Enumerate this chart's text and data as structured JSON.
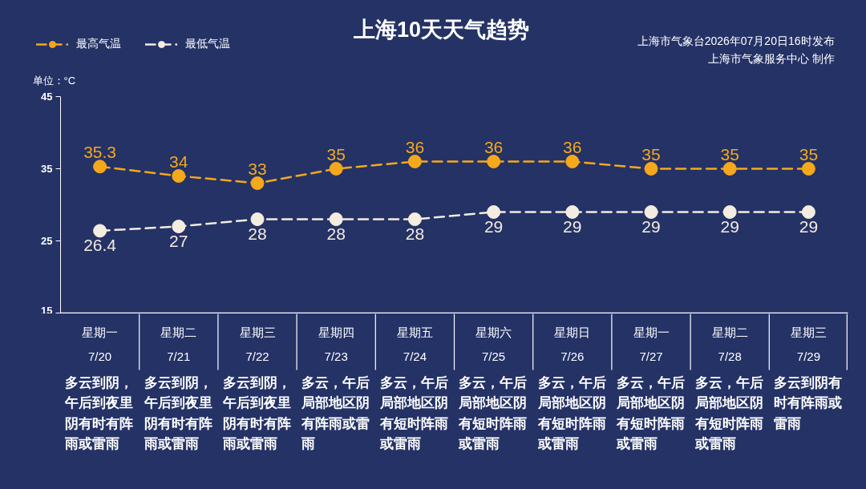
{
  "chart_data": {
    "type": "line",
    "title": "上海10天天气趋势",
    "ylabel": "单位：°C",
    "categories": [
      "星期一\n7/20",
      "星期二\n7/21",
      "星期三\n7/22",
      "星期四\n7/23",
      "星期五\n7/24",
      "星期六\n7/25",
      "星期日\n7/26",
      "星期一\n7/27",
      "星期二\n7/28",
      "星期三\n7/29"
    ],
    "series": [
      {
        "name": "最高气温",
        "color": "#f5a81c",
        "values": [
          35.3,
          34,
          33,
          35,
          36,
          36,
          36,
          35,
          35,
          35
        ]
      },
      {
        "name": "最低气温",
        "color": "#f3ece0",
        "values": [
          26.4,
          27,
          28,
          28,
          28,
          29,
          29,
          29,
          29,
          29
        ]
      }
    ],
    "ylim": [
      15,
      45
    ],
    "yticks": [
      15,
      25,
      35,
      45
    ],
    "grid": false,
    "legend": "top left",
    "marker": "circle",
    "line_style": "dashed",
    "data_labels": true,
    "annotations": [
      "上海市气象台2026年07月20日16时发布",
      "上海市气象服务中心 制作",
      "多云到阴，午后到夜里阴有时有阵雨或雷雨",
      "多云到阴，午后到夜里阴有时有阵雨或雷雨",
      "多云到阴，午后到夜里阴有时有阵雨或雷雨",
      "多云，午后局部地区阴有阵雨或雷雨",
      "多云，午后局部地区阴有短时阵雨或雷雨",
      "多云，午后局部地区阴有短时阵雨或雷雨",
      "多云，午后局部地区阴有短时阵雨或雷雨",
      "多云，午后局部地区阴有短时阵雨或雷雨",
      "多云，午后局部地区阴有短时阵雨或雷雨",
      "多云到阴有时有阵雨或雷雨"
    ]
  }
}
